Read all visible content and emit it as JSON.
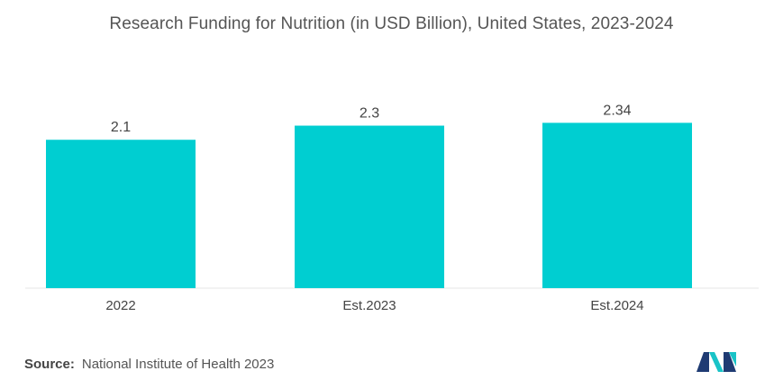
{
  "chart_data": {
    "type": "bar",
    "title": "Research Funding for Nutrition (in USD Billion), United States, 2023-2024",
    "categories": [
      "2022",
      "Est.2023",
      "Est.2024"
    ],
    "values": [
      2.1,
      2.3,
      2.34
    ],
    "data_labels": [
      "2.1",
      "2.3",
      "2.34"
    ],
    "xlabel": "",
    "ylabel": "",
    "ylim": [
      0,
      2.6
    ],
    "grid": false,
    "legend": "none",
    "bar_color": "#00CED1"
  },
  "source": {
    "label": "Source:",
    "text": "National Institute of Health 2023"
  },
  "logo": {
    "icon": "mordor-intelligence-logo",
    "colors": [
      "#1f3b73",
      "#19c3c7"
    ]
  }
}
